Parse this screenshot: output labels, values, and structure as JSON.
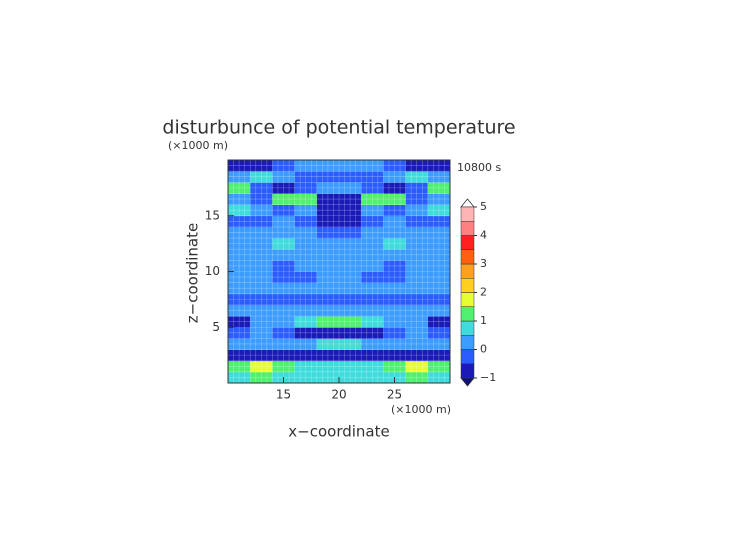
{
  "chart_data": {
    "type": "heatmap",
    "title": "disturbunce of potential temperature",
    "time_label": "10800 s",
    "xlabel": "x−coordinate",
    "ylabel": "z−coordinate",
    "x_unit": "(×1000 m)",
    "y_unit": "(×1000 m)",
    "xlim": [
      10,
      30
    ],
    "ylim": [
      0,
      20
    ],
    "xticks": [
      15,
      20,
      25
    ],
    "yticks": [
      5,
      10,
      15
    ],
    "grid": true,
    "x": [
      11,
      13,
      15,
      17,
      19,
      21,
      23,
      25,
      27,
      29
    ],
    "y": [
      0.5,
      1.5,
      2.5,
      3.5,
      4.5,
      5.5,
      6.5,
      7.5,
      8.5,
      9.5,
      10.5,
      11.5,
      12.5,
      13.5,
      14.5,
      15.5,
      16.5,
      17.5,
      18.5,
      19.5
    ],
    "values": [
      [
        0.8,
        1.0,
        0.9,
        0.7,
        0.6,
        0.6,
        0.7,
        0.9,
        1.0,
        0.8
      ],
      [
        1.4,
        1.6,
        1.4,
        0.9,
        0.7,
        0.7,
        0.9,
        1.4,
        1.6,
        1.4
      ],
      [
        -0.6,
        -0.7,
        -0.8,
        -0.9,
        -0.9,
        -0.9,
        -0.9,
        -0.8,
        -0.7,
        -0.6
      ],
      [
        0.3,
        0.2,
        0.1,
        0.3,
        0.6,
        0.6,
        0.3,
        0.1,
        0.2,
        0.3
      ],
      [
        -0.3,
        0.1,
        -0.2,
        -0.6,
        -0.8,
        -0.8,
        -0.6,
        -0.2,
        0.1,
        -0.3
      ],
      [
        -0.6,
        0.3,
        0.4,
        0.6,
        1.0,
        1.0,
        0.6,
        0.4,
        0.3,
        -0.6
      ],
      [
        0.2,
        0.2,
        0.1,
        0.1,
        0.2,
        0.2,
        0.1,
        0.1,
        0.2,
        0.2
      ],
      [
        -0.2,
        -0.1,
        -0.2,
        -0.2,
        -0.3,
        -0.3,
        -0.2,
        -0.2,
        -0.1,
        -0.2
      ],
      [
        0.2,
        0.3,
        0.2,
        0.1,
        0.2,
        0.2,
        0.1,
        0.2,
        0.3,
        0.2
      ],
      [
        0.1,
        0.2,
        -0.1,
        -0.2,
        0.1,
        0.1,
        -0.2,
        -0.1,
        0.2,
        0.1
      ],
      [
        0.2,
        0.1,
        -0.2,
        0.1,
        0.3,
        0.3,
        0.1,
        -0.2,
        0.1,
        0.2
      ],
      [
        0.2,
        0.3,
        0.1,
        0.2,
        0.3,
        0.3,
        0.2,
        0.1,
        0.3,
        0.2
      ],
      [
        0.1,
        0.2,
        0.8,
        0.3,
        0.2,
        0.2,
        0.3,
        0.8,
        0.2,
        0.1
      ],
      [
        0.2,
        0.1,
        0.3,
        0.0,
        -0.2,
        -0.2,
        0.0,
        0.3,
        0.1,
        0.2
      ],
      [
        -0.3,
        -0.2,
        0.2,
        -0.3,
        -0.7,
        -0.7,
        -0.3,
        0.2,
        -0.2,
        -0.3
      ],
      [
        0.6,
        0.4,
        -0.5,
        0.3,
        -0.8,
        -0.8,
        0.3,
        -0.5,
        0.4,
        0.6
      ],
      [
        0.3,
        -0.4,
        1.3,
        1.1,
        -0.6,
        -0.6,
        1.1,
        1.3,
        -0.4,
        0.3
      ],
      [
        1.3,
        -0.5,
        -0.7,
        -0.3,
        0.4,
        0.4,
        -0.3,
        -0.7,
        -0.5,
        1.3
      ],
      [
        0.2,
        0.6,
        0.2,
        -0.2,
        -0.3,
        -0.3,
        -0.2,
        0.2,
        0.6,
        0.2
      ],
      [
        -0.9,
        -0.6,
        -0.2,
        0.3,
        0.2,
        0.2,
        0.3,
        -0.2,
        -0.6,
        -0.9
      ]
    ],
    "levels": [
      -1,
      -0.5,
      0,
      0.5,
      1,
      1.5,
      2,
      2.5,
      3,
      3.5,
      4,
      4.5,
      5
    ],
    "colors": [
      "#1a1ab8",
      "#2a5cff",
      "#3c9cff",
      "#40dcdc",
      "#50f070",
      "#e6ff30",
      "#ffd020",
      "#ffa020",
      "#ff6010",
      "#ff2020",
      "#ff8080",
      "#ffb4b4"
    ],
    "cticks": [
      {
        "value": -1,
        "label": "−1"
      },
      0,
      1,
      2,
      3,
      4,
      5
    ]
  }
}
